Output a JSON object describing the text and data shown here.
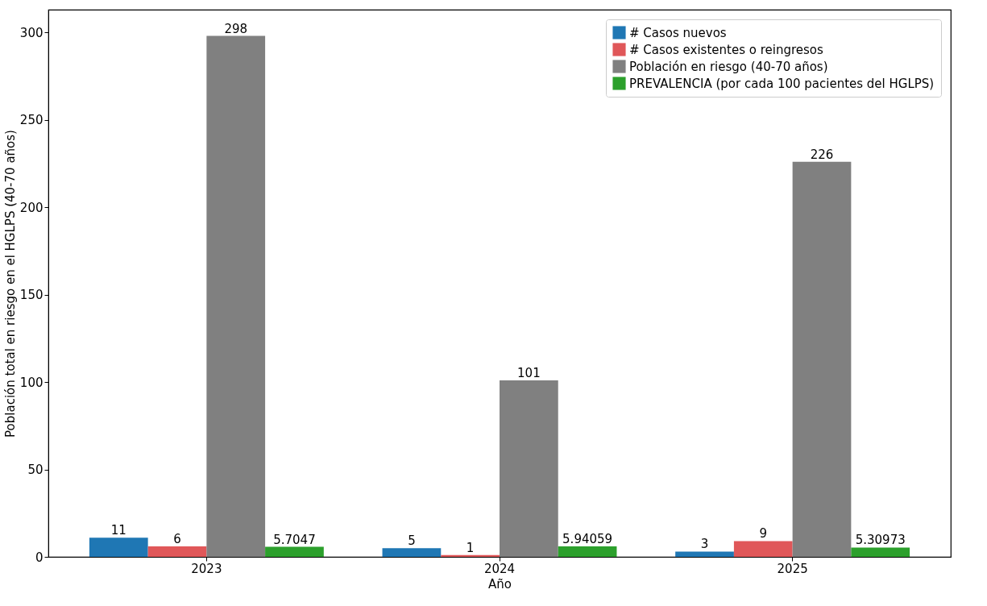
{
  "chart_data": {
    "type": "bar",
    "xlabel": "Año",
    "ylabel": "Población total en riesgo en el HGLPS (40-70 años)",
    "categories": [
      "2023",
      "2024",
      "2025"
    ],
    "series": [
      {
        "name": "# Casos nuevos",
        "color": "#1f77b4",
        "values": [
          11,
          5,
          3
        ]
      },
      {
        "name": "# Casos existentes o reingresos",
        "color": "#e05759",
        "values": [
          6,
          1,
          9
        ]
      },
      {
        "name": "Población en riesgo (40-70 años)",
        "color": "#808080",
        "values": [
          298,
          101,
          226
        ]
      },
      {
        "name": "PREVALENCIA (por cada 100 pacientes del HGLPS)",
        "color": "#2ca02c",
        "values": [
          5.7047,
          5.94059,
          5.30973
        ]
      }
    ],
    "ylim": [
      0,
      313
    ],
    "yticks": [
      0,
      50,
      100,
      150,
      200,
      250,
      300
    ],
    "legend": "top right",
    "data_labels": true
  }
}
